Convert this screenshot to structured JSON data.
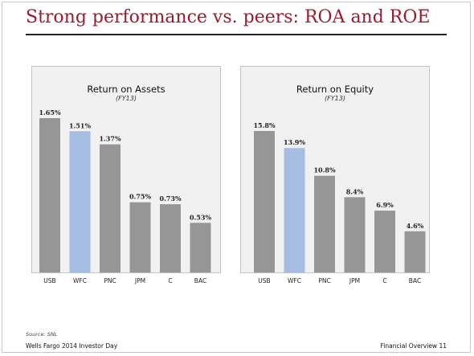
{
  "slide": {
    "title": "Strong performance vs. peers: ROA and ROE",
    "source": "Source: SNL",
    "footer_left": "Wells Fargo 2014 Investor Day",
    "footer_right": "Financial Overview 11"
  },
  "colors": {
    "title": "#9b1b30",
    "bar_default": "#969696",
    "bar_highlight": "#a5bde0"
  },
  "chart_data": [
    {
      "type": "bar",
      "title": "Return on Assets",
      "subtitle": "(FY13)",
      "categories": [
        "USB",
        "WFC",
        "PNC",
        "JPM",
        "C",
        "BAC"
      ],
      "values": [
        1.65,
        1.51,
        1.37,
        0.75,
        0.73,
        0.53
      ],
      "labels": [
        "1.65%",
        "1.51%",
        "1.37%",
        "0.75%",
        "0.73%",
        "0.53%"
      ],
      "highlight": "WFC",
      "ylim": [
        0,
        1.65
      ],
      "grid": false
    },
    {
      "type": "bar",
      "title": "Return on Equity",
      "subtitle": "(FY13)",
      "categories": [
        "USB",
        "WFC",
        "PNC",
        "JPM",
        "C",
        "BAC"
      ],
      "values": [
        15.8,
        13.9,
        10.8,
        8.4,
        6.9,
        4.6
      ],
      "labels": [
        "15.8%",
        "13.9%",
        "10.8%",
        "8.4%",
        "6.9%",
        "4.6%"
      ],
      "highlight": "WFC",
      "ylim": [
        0,
        15.8
      ],
      "grid": false
    }
  ]
}
